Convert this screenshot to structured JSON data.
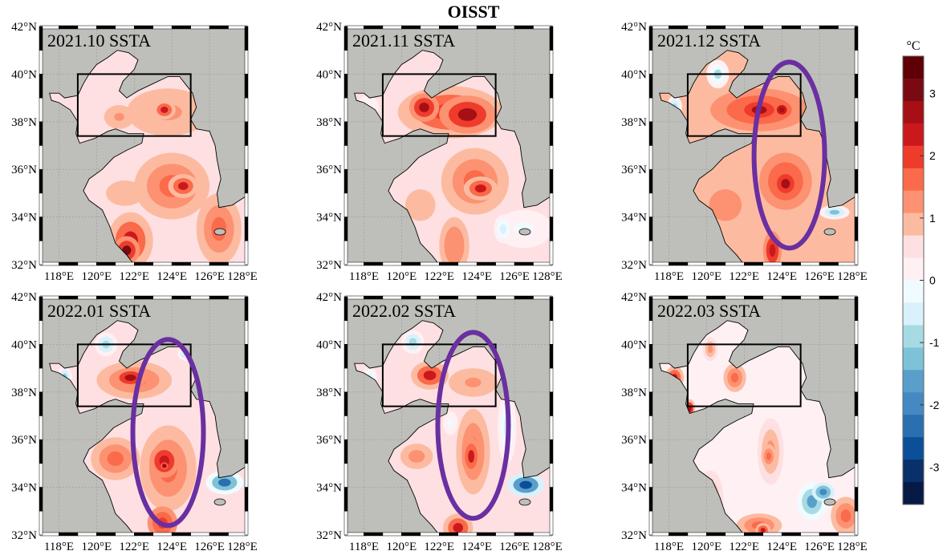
{
  "figure": {
    "title": "OISST",
    "colorbar_unit": "°C",
    "colorbar_ticks": [
      "3",
      "2",
      "1",
      "0",
      "-1",
      "-2",
      "-3"
    ]
  },
  "chart_data": {
    "type": "heatmap",
    "title": "OISST",
    "description": "Six monthly sea surface temperature anomaly (SSTA) maps of the Bohai / Yellow Sea region with a Bohai Sea box and purple ellipses marking a warm tongue",
    "xlabel": "",
    "ylabel": "",
    "lon_range": [
      117,
      128
    ],
    "lat_range": [
      32,
      42
    ],
    "x_ticks": [
      "118°E",
      "120°E",
      "122°E",
      "124°E",
      "126°E",
      "128°E"
    ],
    "y_ticks": [
      "32°N",
      "34°N",
      "36°N",
      "38°N",
      "40°N",
      "42°N"
    ],
    "grid": true,
    "box_region": {
      "lon": [
        119,
        125
      ],
      "lat": [
        37.4,
        40
      ]
    },
    "colorbar": {
      "label": "°C",
      "range": [
        -3.6,
        3.6
      ],
      "levels": 20,
      "ticks": [
        3,
        2,
        1,
        0,
        -1,
        -2,
        -3
      ],
      "colors_top_to_bottom": [
        "#5e0006",
        "#7a0a12",
        "#a50f15",
        "#cb181d",
        "#ef3b2c",
        "#fb6a4a",
        "#fc9272",
        "#fcbba1",
        "#fee0e2",
        "#fff0f3",
        "#f0fbff",
        "#d8f1fb",
        "#a6dbe3",
        "#7ec2d8",
        "#5a9fcc",
        "#4489c2",
        "#2a70b0",
        "#0c4f99",
        "#08306b",
        "#061a45"
      ]
    },
    "panels": [
      {
        "label": "2021.10 SSTA",
        "ellipse": false,
        "max_anomaly_approx": 3.0,
        "min_anomaly_approx": 0.2
      },
      {
        "label": "2021.11 SSTA",
        "ellipse": false,
        "max_anomaly_approx": 3.0,
        "min_anomaly_approx": -0.6
      },
      {
        "label": "2021.12 SSTA",
        "ellipse": true,
        "ellipse_center": {
          "lon": 124.4,
          "lat": 36.6
        },
        "max_anomaly_approx": 2.8,
        "min_anomaly_approx": -1.5
      },
      {
        "label": "2022.01 SSTA",
        "ellipse": true,
        "ellipse_center": {
          "lon": 123.8,
          "lat": 36.3
        },
        "max_anomaly_approx": 2.8,
        "min_anomaly_approx": -2.5
      },
      {
        "label": "2022.02 SSTA",
        "ellipse": true,
        "ellipse_center": {
          "lon": 123.8,
          "lat": 36.6
        },
        "max_anomaly_approx": 2.4,
        "min_anomaly_approx": -3.0
      },
      {
        "label": "2022.03 SSTA",
        "ellipse": false,
        "max_anomaly_approx": 2.4,
        "min_anomaly_approx": -2.0
      }
    ]
  }
}
